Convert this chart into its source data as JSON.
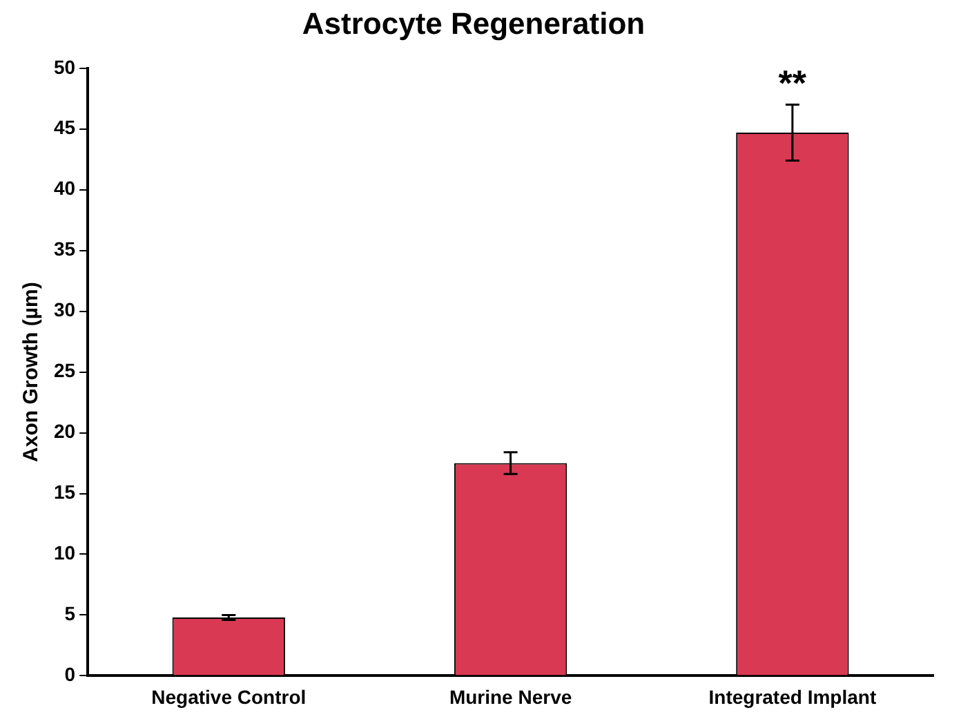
{
  "chart_data": {
    "type": "bar",
    "title": "Astrocyte Regeneration",
    "ylabel": "Axon Growth (µm)",
    "categories": [
      "Negative Control",
      "Murine Nerve",
      "Integrated Implant"
    ],
    "values": [
      4.8,
      17.5,
      44.7
    ],
    "errors": [
      0.2,
      0.9,
      2.3
    ],
    "color": "#d93952",
    "ylim": [
      0,
      50
    ],
    "yticks": [
      0,
      5,
      10,
      15,
      20,
      25,
      30,
      35,
      40,
      45,
      50
    ],
    "grid": false,
    "legend": false,
    "annotations": [
      "**"
    ]
  }
}
